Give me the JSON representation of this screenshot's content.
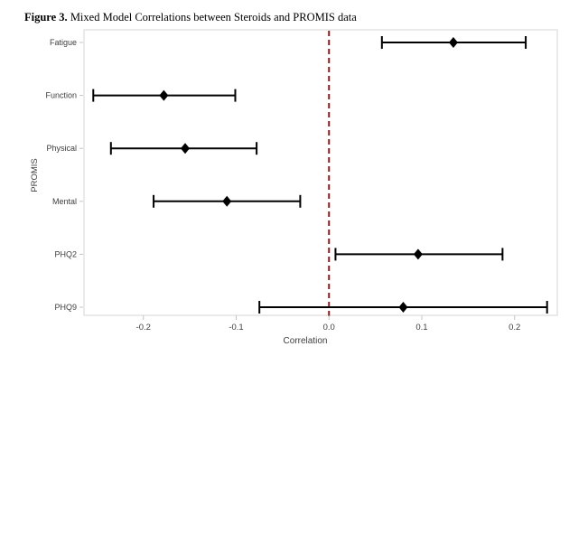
{
  "caption": {
    "label": "Figure 3.",
    "text": " Mixed Model Correlations between Steroids and PROMIS data"
  },
  "chart_data": {
    "type": "forest",
    "title": "Mixed Model Correlations between Steroids and PROMIS data",
    "xlabel": "Correlation",
    "ylabel": "PROMIS",
    "categories": [
      "Fatigue",
      "Function",
      "Physical",
      "Mental",
      "PHQ2",
      "PHQ9"
    ],
    "points": [
      {
        "label": "Fatigue",
        "estimate": 0.134,
        "ci_low": 0.057,
        "ci_high": 0.212
      },
      {
        "label": "Function",
        "estimate": -0.178,
        "ci_low": -0.254,
        "ci_high": -0.101
      },
      {
        "label": "Physical",
        "estimate": -0.155,
        "ci_low": -0.235,
        "ci_high": -0.078
      },
      {
        "label": "Mental",
        "estimate": -0.11,
        "ci_low": -0.189,
        "ci_high": -0.031
      },
      {
        "label": "PHQ2",
        "estimate": 0.096,
        "ci_low": 0.007,
        "ci_high": 0.187
      },
      {
        "label": "PHQ9",
        "estimate": 0.08,
        "ci_low": -0.075,
        "ci_high": 0.235
      }
    ],
    "x_ticks": [
      -0.2,
      -0.1,
      0.0,
      0.1,
      0.2
    ],
    "x_tick_labels": [
      "-0.2",
      "-0.1",
      "0.0",
      "0.1",
      "0.2"
    ],
    "xlim": [
      -0.264,
      0.246
    ],
    "grid": false,
    "legend": "none",
    "reference_line": {
      "x": 0.0,
      "style": "dashed",
      "color": "#8e1b1b"
    },
    "marker": {
      "shape": "diamond",
      "color": "#000000"
    },
    "colors": {
      "plot_border": "#d6d6d6",
      "tick": "#c4c4c4",
      "label": "#3d3d3d",
      "bar": "#000000"
    }
  }
}
